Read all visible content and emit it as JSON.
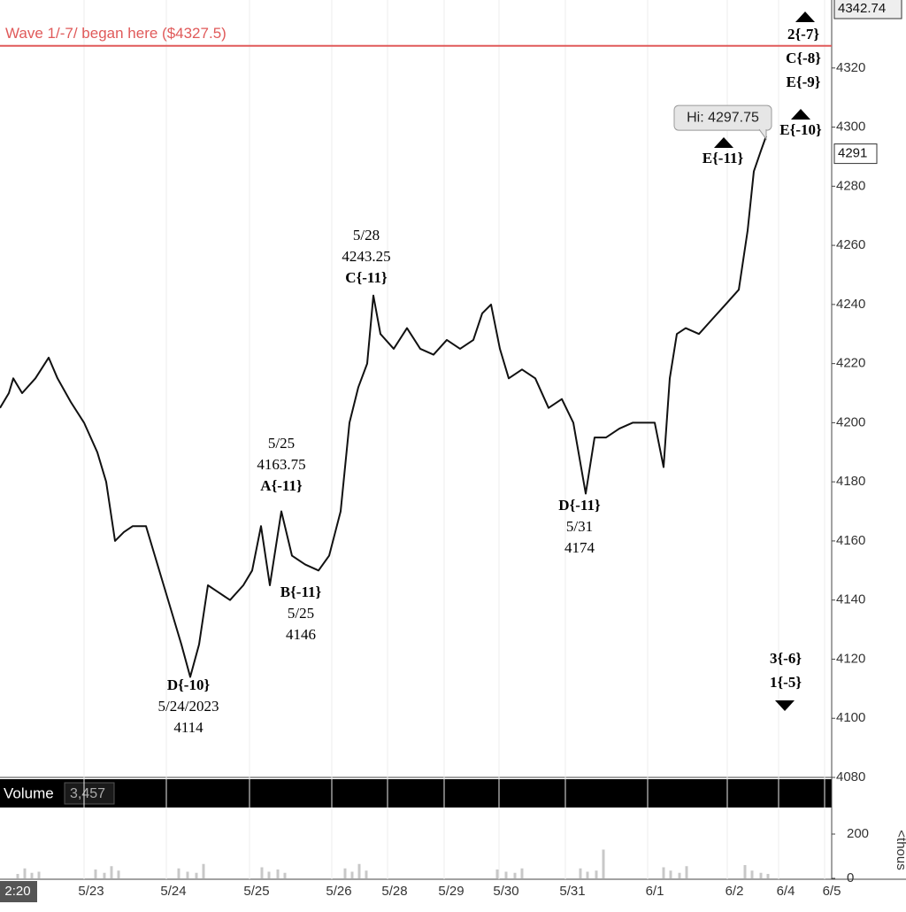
{
  "chart_data": [
    {
      "type": "line",
      "color": "#111",
      "x": [
        0,
        2,
        3,
        5,
        8,
        11,
        13,
        16,
        19,
        22,
        24,
        26,
        28,
        30,
        33,
        35,
        37,
        39,
        41,
        43,
        45,
        47,
        49,
        52,
        55,
        57,
        59,
        61,
        63.6,
        66,
        69,
        72,
        74.4,
        77,
        79,
        81,
        83,
        84.4,
        86,
        89,
        92,
        95,
        98,
        101,
        104,
        107,
        109,
        111,
        113,
        115,
        118,
        121,
        124,
        127,
        129.6,
        132.4,
        134.4,
        137,
        140,
        143,
        146,
        148,
        150,
        151.4,
        153,
        155,
        158,
        161,
        164,
        167,
        169,
        170.4,
        172,
        173.2
      ],
      "values": [
        4205,
        4210,
        4215,
        4210,
        4215,
        4222,
        4215,
        4207,
        4200,
        4190,
        4180,
        4160,
        4163,
        4165,
        4165,
        4155,
        4145,
        4135,
        4125,
        4114,
        4125,
        4145,
        4143,
        4140,
        4145,
        4150,
        4165,
        4145,
        4170,
        4155,
        4152,
        4150,
        4155,
        4170,
        4200,
        4212,
        4220,
        4243,
        4230,
        4225,
        4232,
        4225,
        4223,
        4228,
        4225,
        4228,
        4237,
        4240,
        4225,
        4215,
        4218,
        4215,
        4205,
        4208,
        4200,
        4176,
        4195,
        4195,
        4198,
        4200,
        4200,
        4200,
        4185,
        4215,
        4230,
        4232,
        4230,
        4235,
        4240,
        4245,
        4265,
        4285,
        4292,
        4297
      ],
      "xlim": [
        0,
        188
      ],
      "xticks": [
        {
          "value": 4,
          "label": "2:20"
        },
        {
          "value": 20.6,
          "label": "5/23"
        },
        {
          "value": 39.2,
          "label": "5/24"
        },
        {
          "value": 58,
          "label": "5/25"
        },
        {
          "value": 76.6,
          "label": "5/26"
        },
        {
          "value": 89.2,
          "label": "5/28"
        },
        {
          "value": 102,
          "label": "5/29"
        },
        {
          "value": 114.4,
          "label": "5/30"
        },
        {
          "value": 129.4,
          "label": "5/31"
        },
        {
          "value": 148,
          "label": "6/1"
        },
        {
          "value": 166,
          "label": "6/2"
        },
        {
          "value": 177.6,
          "label": "6/4"
        },
        {
          "value": 188,
          "label": "6/5"
        }
      ],
      "ylim": [
        4080,
        4343
      ],
      "yticks": [
        4080,
        4100,
        4120,
        4140,
        4160,
        4180,
        4200,
        4220,
        4240,
        4260,
        4280,
        4300,
        4320
      ],
      "reference_line": {
        "value": 4327.5,
        "label": "Wave 1/-7/ began here ($4327.5)",
        "color": "#e05a5a"
      },
      "price_tags": [
        {
          "value": 4342.74,
          "label": "4342.74"
        },
        {
          "value": 4291,
          "label": "4291"
        }
      ],
      "high": {
        "value": 4297.75,
        "label": "Hi: 4297.75"
      },
      "annotations": [
        {
          "lines": [
            "5/28",
            "4243.25",
            "C{-11}"
          ]
        },
        {
          "lines": [
            "5/25",
            "4163.75",
            "A{-11}"
          ]
        },
        {
          "lines": [
            "B{-11}",
            "5/25",
            "4146"
          ]
        },
        {
          "lines": [
            "D{-10}",
            "5/24/2023",
            "4114"
          ]
        },
        {
          "lines": [
            "D{-11}",
            "5/31",
            "4174"
          ]
        },
        {
          "lines": [
            "E{-11}"
          ]
        },
        {
          "lines": [
            "E{-10}"
          ]
        },
        {
          "lines": [
            "2{-7}",
            "C{-8}",
            "E{-9}"
          ]
        },
        {
          "lines": [
            "3{-6}",
            "1{-5}"
          ]
        }
      ]
    },
    {
      "type": "bar",
      "title": "Volume",
      "last": "3,457",
      "unit": "<thous",
      "color": "#c8c8c8",
      "x": [
        4,
        5.6,
        7.2,
        8.8,
        21.6,
        23.6,
        25.2,
        26.8,
        40.4,
        42.4,
        44.4,
        46,
        59.2,
        60.8,
        62.8,
        64.4,
        78,
        79.6,
        81.2,
        82.8,
        112.4,
        114.4,
        116.4,
        118,
        131.2,
        132.8,
        134.8,
        136.4,
        150,
        151.6,
        153.6,
        155.2,
        168.4,
        170,
        172,
        173.6
      ],
      "values": [
        20,
        45,
        25,
        30,
        40,
        25,
        55,
        35,
        45,
        30,
        25,
        65,
        50,
        30,
        40,
        25,
        45,
        30,
        65,
        35,
        40,
        30,
        25,
        45,
        45,
        30,
        35,
        130,
        50,
        35,
        25,
        55,
        60,
        35,
        25,
        20
      ],
      "ylim": [
        0,
        320
      ],
      "yticks": [
        0,
        200
      ]
    }
  ]
}
